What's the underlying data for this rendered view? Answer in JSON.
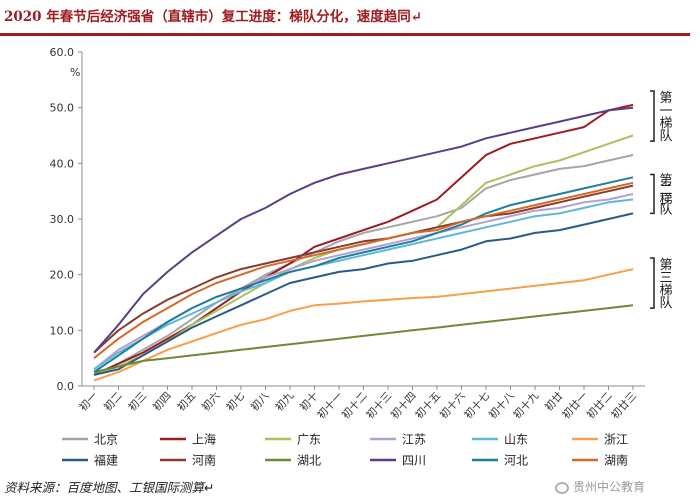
{
  "title": "2020 年春节后经济强省（直辖市）复工进度：梯队分化，速度趋同↵",
  "source": "资料来源：百度地图、工银国际测算↵",
  "watermark": "贵州中公教育",
  "chart_data": {
    "type": "line",
    "ylabel": "%",
    "ylim": [
      0,
      60
    ],
    "yticks": [
      "0.0",
      "10.0",
      "20.0",
      "30.0",
      "40.0",
      "50.0",
      "60.0"
    ],
    "categories": [
      "初一",
      "初二",
      "初三",
      "初四",
      "初五",
      "初六",
      "初七",
      "初八",
      "初九",
      "初十",
      "初十一",
      "初十二",
      "初十三",
      "初十四",
      "初十五",
      "初十六",
      "初十七",
      "初十八",
      "初十九",
      "初廿",
      "初廿一",
      "初廿二",
      "初廿三"
    ],
    "tiers": [
      {
        "name": "第一梯队",
        "chars": [
          "第",
          "一",
          "梯",
          "队"
        ],
        "range": [
          44,
          53
        ]
      },
      {
        "name": "第二梯队",
        "chars": [
          "第",
          "二",
          "梯",
          "队"
        ],
        "range": [
          31,
          38
        ]
      },
      {
        "name": "第三梯队",
        "chars": [
          "第",
          "三",
          "梯",
          "队"
        ],
        "range": [
          14,
          23
        ]
      }
    ],
    "series": [
      {
        "name": "北京",
        "color": "#a6a6a6",
        "values": [
          2,
          4,
          6.5,
          9,
          12,
          15,
          17.5,
          20,
          22,
          24,
          26,
          27.5,
          28.5,
          29.5,
          30.5,
          32,
          35.5,
          37,
          38,
          39,
          39.5,
          40.5,
          41.5
        ]
      },
      {
        "name": "上海",
        "color": "#9e1b20",
        "values": [
          2,
          4,
          6,
          8.5,
          11,
          14,
          17,
          19.5,
          22,
          25,
          26.5,
          28,
          29.5,
          31.5,
          33.5,
          37.5,
          41.5,
          43.5,
          44.5,
          45.5,
          46.5,
          49.5,
          50.5
        ]
      },
      {
        "name": "广东",
        "color": "#a9c25d",
        "values": [
          2,
          3.5,
          5.5,
          8,
          11,
          13.5,
          16,
          18.5,
          21,
          23,
          24.5,
          25.5,
          26.5,
          27.5,
          28.5,
          32.5,
          36.5,
          38,
          39.5,
          40.5,
          42,
          43.5,
          45
        ]
      },
      {
        "name": "江苏",
        "color": "#b49fd3",
        "values": [
          3,
          6.5,
          9,
          11.5,
          14,
          16,
          17.5,
          19.5,
          21,
          22.5,
          23.5,
          24.5,
          25.5,
          26.5,
          27.5,
          28.5,
          29.5,
          30.5,
          31.5,
          32,
          33,
          33.5,
          34.5
        ]
      },
      {
        "name": "山东",
        "color": "#5fb8dc",
        "values": [
          3,
          6,
          8.5,
          11,
          13,
          15,
          17,
          18.5,
          20.5,
          21.5,
          22.5,
          23.5,
          24.5,
          25.5,
          26.5,
          27.5,
          28.5,
          29.5,
          30.5,
          31,
          32,
          33,
          33.5
        ]
      },
      {
        "name": "浙江",
        "color": "#f79f4a",
        "values": [
          1,
          2.5,
          4.5,
          6.5,
          8,
          9.5,
          11,
          12,
          13.5,
          14.5,
          14.8,
          15.2,
          15.5,
          15.8,
          16,
          16.5,
          17,
          17.5,
          18,
          18.5,
          19,
          20,
          21
        ]
      },
      {
        "name": "福建",
        "color": "#2a5b87",
        "values": [
          2,
          3,
          5.5,
          8,
          10.5,
          12.5,
          14.5,
          16.5,
          18.5,
          19.5,
          20.5,
          21,
          22,
          22.5,
          23.5,
          24.5,
          26,
          26.5,
          27.5,
          28,
          29,
          30,
          31
        ]
      },
      {
        "name": "河南",
        "color": "#8a3b2f",
        "values": [
          6,
          10,
          13,
          15.5,
          17.5,
          19.5,
          21,
          22,
          23,
          24,
          25,
          26,
          26.5,
          27.5,
          28.5,
          29.5,
          30.5,
          31,
          32,
          33,
          34,
          35,
          36
        ]
      },
      {
        "name": "湖北",
        "color": "#6f8a36",
        "values": [
          2.5,
          3.5,
          4.5,
          5,
          5.5,
          6,
          6.5,
          7,
          7.5,
          8,
          8.5,
          9,
          9.5,
          10,
          10.5,
          11,
          11.5,
          12,
          12.5,
          13,
          13.5,
          14,
          14.5
        ]
      },
      {
        "name": "四川",
        "color": "#5a3f86",
        "values": [
          6,
          11,
          16.5,
          20.5,
          24,
          27,
          30,
          32,
          34.5,
          36.5,
          38,
          39,
          40,
          41,
          42,
          43,
          44.5,
          45.5,
          46.5,
          47.5,
          48.5,
          49.5,
          50
        ]
      },
      {
        "name": "河北",
        "color": "#1f7f9a",
        "values": [
          2.5,
          5.5,
          8.5,
          11.5,
          14,
          16,
          17.5,
          19,
          20.5,
          21.5,
          23,
          24,
          25,
          26,
          27.5,
          29,
          31,
          32.5,
          33.5,
          34.5,
          35.5,
          36.5,
          37.5
        ]
      },
      {
        "name": "湖南",
        "color": "#d46a2a",
        "values": [
          5,
          8.5,
          11.5,
          14,
          16.5,
          18.5,
          20,
          21.5,
          22.5,
          23.5,
          24.5,
          25.5,
          26.5,
          27.5,
          28,
          29.5,
          30.5,
          31.5,
          32.5,
          33.5,
          34.5,
          35.5,
          36.5
        ]
      }
    ]
  }
}
